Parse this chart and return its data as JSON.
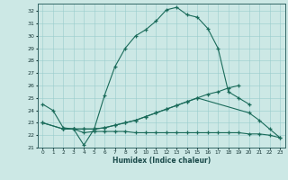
{
  "xlabel": "Humidex (Indice chaleur)",
  "bg_color": "#cce8e5",
  "grid_color": "#99cccc",
  "line_color": "#1a6b5a",
  "xlim": [
    -0.5,
    23.5
  ],
  "ylim": [
    21,
    32.6
  ],
  "ytick_vals": [
    21,
    22,
    23,
    24,
    25,
    26,
    27,
    28,
    29,
    30,
    31,
    32
  ],
  "xtick_vals": [
    0,
    1,
    2,
    3,
    4,
    5,
    6,
    7,
    8,
    9,
    10,
    11,
    12,
    13,
    14,
    15,
    16,
    17,
    18,
    19,
    20,
    21,
    22,
    23
  ],
  "curve1_x": [
    0,
    1,
    2,
    3,
    4,
    5,
    6,
    7,
    8,
    9,
    10,
    11,
    12,
    13,
    14,
    15,
    16,
    17,
    18,
    19,
    20
  ],
  "curve1_y": [
    24.5,
    24.0,
    22.6,
    22.5,
    21.2,
    22.5,
    25.2,
    27.5,
    29.0,
    30.0,
    30.5,
    31.2,
    32.1,
    32.3,
    31.7,
    31.5,
    30.6,
    29.0,
    25.5,
    25.0,
    24.5
  ],
  "curve2_x": [
    0,
    2,
    3,
    4,
    5,
    6,
    7,
    8,
    9,
    10,
    11,
    12,
    13,
    14,
    15,
    16,
    17,
    18,
    19
  ],
  "curve2_y": [
    23.0,
    22.5,
    22.5,
    22.5,
    22.5,
    22.6,
    22.8,
    23.0,
    23.2,
    23.5,
    23.8,
    24.1,
    24.4,
    24.7,
    25.0,
    25.3,
    25.5,
    25.8,
    26.0
  ],
  "curve3_x": [
    2,
    3,
    4,
    5,
    6,
    7,
    8,
    9,
    10,
    11,
    12,
    13,
    14,
    15,
    16,
    17,
    18,
    19,
    20,
    21,
    22,
    23
  ],
  "curve3_y": [
    22.5,
    22.5,
    22.2,
    22.3,
    22.3,
    22.3,
    22.3,
    22.2,
    22.2,
    22.2,
    22.2,
    22.2,
    22.2,
    22.2,
    22.2,
    22.2,
    22.2,
    22.2,
    22.1,
    22.1,
    22.0,
    21.8
  ],
  "curve4_x": [
    0,
    2,
    3,
    4,
    5,
    6,
    7,
    8,
    9,
    10,
    11,
    12,
    13,
    14,
    15,
    20,
    21,
    22,
    23
  ],
  "curve4_y": [
    23.0,
    22.5,
    22.5,
    22.5,
    22.5,
    22.6,
    22.8,
    23.0,
    23.2,
    23.5,
    23.8,
    24.1,
    24.4,
    24.7,
    25.0,
    23.8,
    23.2,
    22.5,
    21.8
  ]
}
